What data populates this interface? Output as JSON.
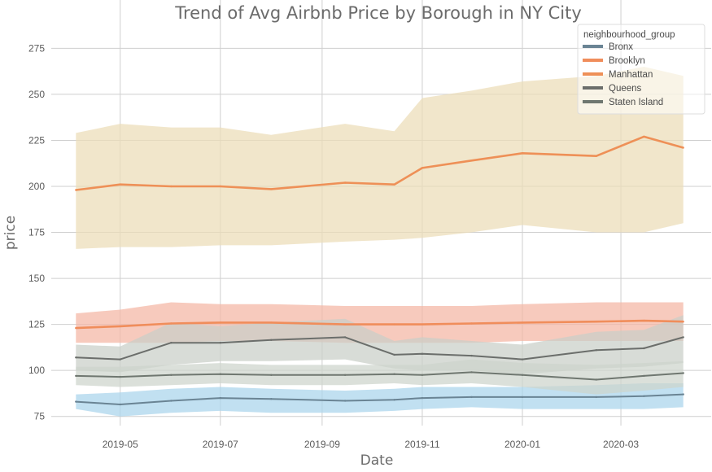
{
  "chart_data": {
    "type": "line",
    "title": "Trend of Avg Airbnb Price by Borough in NY City",
    "xlabel": "Date",
    "ylabel": "price",
    "x": [
      "2019-04-04",
      "2019-05-01",
      "2019-06-01",
      "2019-07-01",
      "2019-08-01",
      "2019-09-15",
      "2019-10-15",
      "2019-11-01",
      "2019-12-01",
      "2020-01-01",
      "2020-02-15",
      "2020-03-15",
      "2020-04-08"
    ],
    "x_ticks": [
      "2019-05",
      "2019-07",
      "2019-09",
      "2019-11",
      "2020-01",
      "2020-03"
    ],
    "x_tick_dates": [
      "2019-05-01",
      "2019-07-01",
      "2019-09-01",
      "2019-11-01",
      "2020-01-01",
      "2020-03-01"
    ],
    "x_range": [
      "2019-03-20",
      "2020-04-25"
    ],
    "ylim": [
      70,
      288
    ],
    "y_ticks": [
      75,
      100,
      125,
      150,
      175,
      200,
      225,
      250,
      275
    ],
    "grid": true,
    "legend": {
      "title": "neighbourhood_group",
      "position": "top-right"
    },
    "series": [
      {
        "name": "Bronx",
        "color": "#6a8494",
        "band_color": "#a9d4ec",
        "values": [
          83,
          81.5,
          83.5,
          85,
          84.5,
          83.5,
          84,
          85,
          85.5,
          85.5,
          85.5,
          86,
          87
        ],
        "lower": [
          79,
          75,
          77,
          78,
          77,
          77,
          78,
          79,
          80,
          79,
          79,
          79,
          80
        ],
        "upper": [
          87,
          88,
          90,
          91,
          90,
          89,
          90,
          91,
          91,
          91,
          92,
          93,
          93
        ]
      },
      {
        "name": "Brooklyn",
        "color": "#f08d5b",
        "band_color": "#f4b6a4",
        "values": [
          123,
          124,
          125.5,
          126,
          126,
          125,
          125,
          125,
          125.5,
          126,
          126.5,
          127,
          126.5
        ],
        "lower": [
          115,
          115,
          115,
          116,
          116,
          115,
          115,
          115,
          115,
          116,
          116,
          116,
          116
        ],
        "upper": [
          131,
          133,
          137,
          136,
          136,
          135,
          135,
          135,
          135,
          136,
          137,
          137,
          137
        ]
      },
      {
        "name": "Manhattan",
        "color": "#ee9057",
        "band_color": "#ecdcb7",
        "values": [
          198,
          201,
          200,
          200,
          198.5,
          202,
          201,
          210,
          214,
          218,
          216.5,
          227,
          221
        ],
        "lower": [
          166,
          167,
          167,
          168,
          168,
          170,
          171,
          172,
          175,
          179,
          175,
          175,
          180
        ],
        "upper": [
          229,
          234,
          232,
          232,
          228,
          234,
          230,
          248,
          252,
          257,
          260,
          265,
          260
        ]
      },
      {
        "name": "Queens",
        "color": "#6b6e6b",
        "band_color": "#c9cec8",
        "values": [
          107,
          106,
          115,
          115,
          116.5,
          118,
          108.5,
          109,
          108,
          106,
          111,
          112,
          118
        ],
        "lower": [
          100,
          99,
          103,
          105,
          105,
          106,
          101,
          100,
          100,
          98,
          101,
          102,
          104
        ],
        "upper": [
          114,
          113,
          126,
          124,
          126,
          128,
          116,
          118,
          116,
          114,
          121,
          122,
          130
        ]
      },
      {
        "name": "Staten Island",
        "color": "#6f7770",
        "band_color": "#cdd4cc",
        "values": [
          97,
          96.5,
          97.5,
          98,
          97.5,
          97.5,
          98,
          97.5,
          99,
          97.5,
          95,
          97,
          98.5
        ],
        "lower": [
          92,
          91,
          92,
          93,
          92,
          92,
          93,
          92,
          93,
          91,
          87,
          89,
          91
        ],
        "upper": [
          102,
          102,
          103,
          104,
          103,
          103,
          103,
          103,
          106,
          104,
          103,
          104,
          105
        ]
      }
    ]
  }
}
